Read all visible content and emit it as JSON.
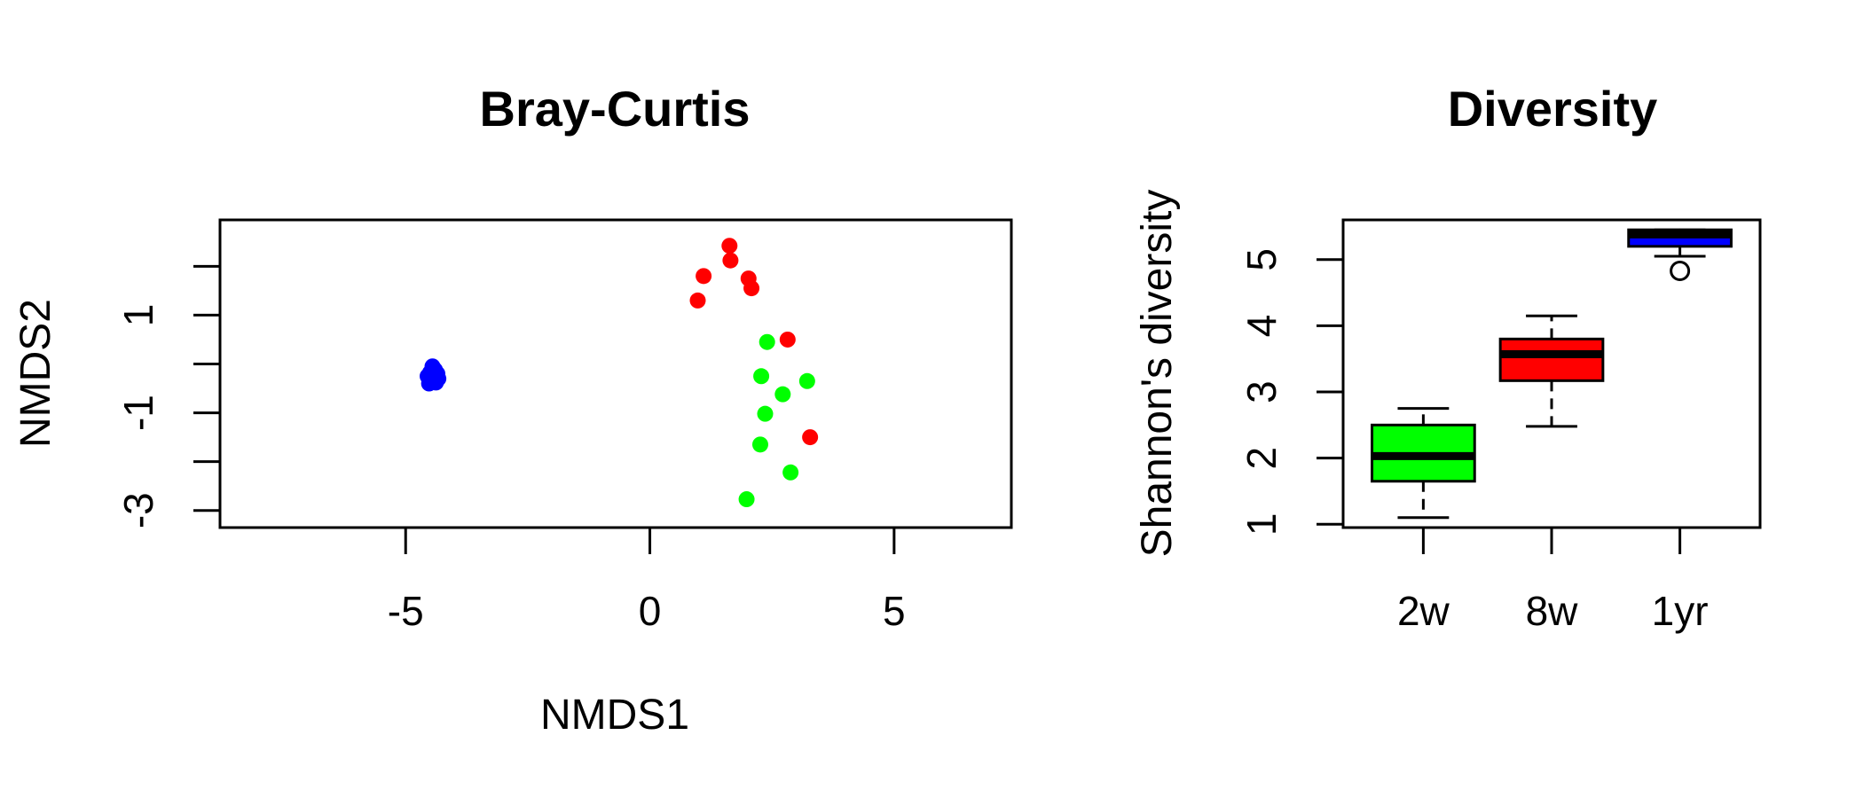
{
  "chart_data": [
    {
      "type": "scatter",
      "title": "Bray-Curtis",
      "xlabel": "NMDS1",
      "ylabel": "NMDS2",
      "xlim": [
        -8.8,
        7.4
      ],
      "ylim": [
        -3.35,
        2.95
      ],
      "xticks": [
        -5,
        0,
        5
      ],
      "yticks": [
        -3,
        -1,
        1
      ],
      "series": [
        {
          "color": "#0000ff",
          "points": [
            {
              "x": -4.45,
              "y": -0.05
            },
            {
              "x": -4.4,
              "y": -0.12
            },
            {
              "x": -4.5,
              "y": -0.18
            },
            {
              "x": -4.35,
              "y": -0.2
            },
            {
              "x": -4.55,
              "y": -0.25
            },
            {
              "x": -4.42,
              "y": -0.28
            },
            {
              "x": -4.33,
              "y": -0.3
            },
            {
              "x": -4.48,
              "y": -0.35
            },
            {
              "x": -4.38,
              "y": -0.38
            },
            {
              "x": -4.52,
              "y": -0.4
            }
          ]
        },
        {
          "color": "#ff0000",
          "points": [
            {
              "x": 1.63,
              "y": 2.42
            },
            {
              "x": 1.65,
              "y": 2.12
            },
            {
              "x": 1.1,
              "y": 1.8
            },
            {
              "x": 2.02,
              "y": 1.75
            },
            {
              "x": 2.08,
              "y": 1.55
            },
            {
              "x": 0.98,
              "y": 1.3
            },
            {
              "x": 2.82,
              "y": 0.5
            },
            {
              "x": 3.28,
              "y": -1.5
            }
          ]
        },
        {
          "color": "#00ff00",
          "points": [
            {
              "x": 2.4,
              "y": 0.45
            },
            {
              "x": 2.28,
              "y": -0.25
            },
            {
              "x": 3.22,
              "y": -0.35
            },
            {
              "x": 2.72,
              "y": -0.62
            },
            {
              "x": 2.36,
              "y": -1.02
            },
            {
              "x": 2.26,
              "y": -1.65
            },
            {
              "x": 2.88,
              "y": -2.22
            },
            {
              "x": 1.98,
              "y": -2.77
            }
          ]
        }
      ]
    },
    {
      "type": "boxplot",
      "title": "Diversity",
      "xlabel": "",
      "ylabel": "Shannon's diversity",
      "ylim": [
        0.95,
        5.6
      ],
      "yticks": [
        1,
        2,
        3,
        4,
        5
      ],
      "categories": [
        "2w",
        "8w",
        "1yr"
      ],
      "boxes": [
        {
          "label": "2w",
          "color": "#00ff00",
          "whisker_low": 1.1,
          "q1": 1.65,
          "median": 2.03,
          "q3": 2.5,
          "whisker_high": 2.75,
          "outliers": []
        },
        {
          "label": "8w",
          "color": "#ff0000",
          "whisker_low": 2.48,
          "q1": 3.17,
          "median": 3.57,
          "q3": 3.8,
          "whisker_high": 4.15,
          "outliers": []
        },
        {
          "label": "1yr",
          "color": "#0000ff",
          "whisker_low": 5.05,
          "q1": 5.2,
          "median": 5.38,
          "q3": 5.45,
          "whisker_high": 5.45,
          "outliers": [
            4.83
          ]
        }
      ]
    }
  ]
}
